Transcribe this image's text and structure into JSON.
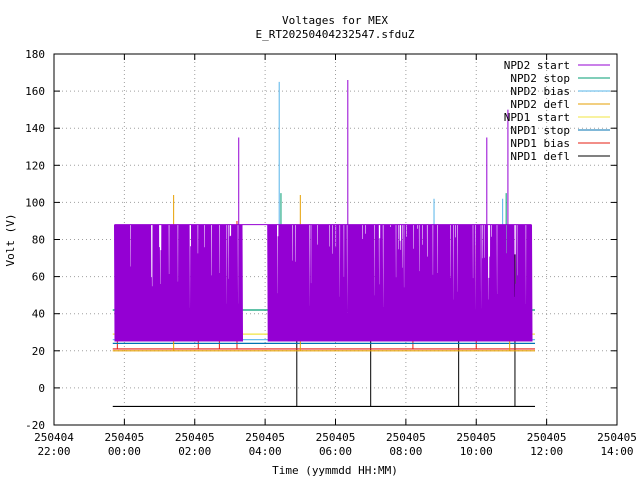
{
  "chart_data": {
    "type": "line",
    "title": "Voltages for MEX",
    "subtitle": "E_RT20250404232547.sfduZ",
    "xlabel": "Time (yymmdd HH:MM)",
    "ylabel": "Volt (V)",
    "ylim": [
      -20,
      180
    ],
    "yticks": [
      -20,
      0,
      20,
      40,
      60,
      80,
      100,
      120,
      140,
      160,
      180
    ],
    "xlim_hours": [
      22,
      38
    ],
    "xticks": [
      {
        "date": "250404",
        "time": "22:00"
      },
      {
        "date": "250405",
        "time": "00:00"
      },
      {
        "date": "250405",
        "time": "02:00"
      },
      {
        "date": "250405",
        "time": "04:00"
      },
      {
        "date": "250405",
        "time": "06:00"
      },
      {
        "date": "250405",
        "time": "08:00"
      },
      {
        "date": "250405",
        "time": "10:00"
      },
      {
        "date": "250405",
        "time": "12:00"
      },
      {
        "date": "250405",
        "time": "14:00"
      }
    ],
    "grid": true,
    "legend_position": "top-right",
    "series": [
      {
        "name": "NPD2 start",
        "color": "#9400d3",
        "base": 88,
        "band_low": 25,
        "gaps": [
          [
            27.35,
            28.05
          ]
        ],
        "spikes": [
          [
            27.25,
            135
          ],
          [
            30.35,
            166
          ],
          [
            34.3,
            135
          ],
          [
            34.9,
            150
          ]
        ]
      },
      {
        "name": "NPD2 stop",
        "color": "#009e73",
        "base": 42,
        "spikes": [
          [
            28.45,
            105
          ],
          [
            34.85,
            105
          ]
        ]
      },
      {
        "name": "NPD2 bias",
        "color": "#56b4e9",
        "base": 26,
        "spikes": [
          [
            28.4,
            165
          ],
          [
            32.8,
            102
          ],
          [
            34.75,
            102
          ],
          [
            24.9,
            56
          ]
        ]
      },
      {
        "name": "NPD2 defl",
        "color": "#e69f00",
        "base": 20,
        "spikes": [
          [
            25.4,
            104
          ],
          [
            29.0,
            104
          ],
          [
            34.95,
            50
          ]
        ]
      },
      {
        "name": "NPD1 start",
        "color": "#f0e442",
        "base": 29,
        "spikes": [
          [
            23.8,
            40
          ],
          [
            27.1,
            40
          ]
        ]
      },
      {
        "name": "NPD1 stop",
        "color": "#0072b2",
        "base": 24,
        "spikes": []
      },
      {
        "name": "NPD1 bias",
        "color": "#e51e10",
        "base": 21,
        "spikes": [
          [
            23.8,
            55
          ],
          [
            26.1,
            58
          ],
          [
            26.7,
            60
          ],
          [
            27.2,
            90
          ],
          [
            32.2,
            72
          ],
          [
            34.0,
            77
          ]
        ]
      },
      {
        "name": "NPD1 defl",
        "color": "#000000",
        "base": -10,
        "spikes": [
          [
            28.9,
            57
          ],
          [
            31.0,
            52
          ],
          [
            33.5,
            52
          ],
          [
            35.1,
            72
          ]
        ]
      }
    ],
    "x_range_hours": [
      23.67,
      35.67
    ]
  }
}
